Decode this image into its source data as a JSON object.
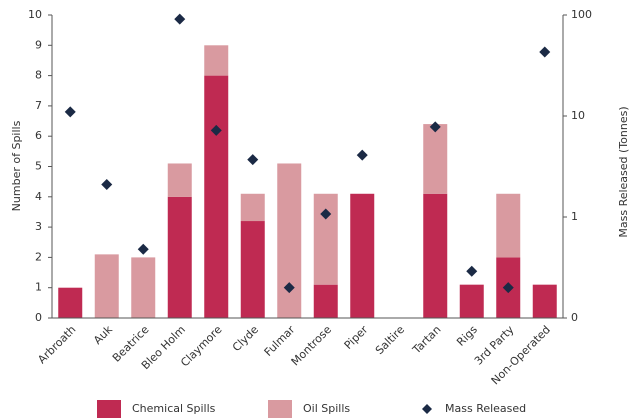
{
  "chart_data": {
    "type": "bar",
    "categories": [
      "Arbroath",
      "Auk",
      "Beatrice",
      "Bleo Holm",
      "Claymore",
      "Clyde",
      "Fulmar",
      "Montrose",
      "Piper",
      "Saltire",
      "Tartan",
      "Rigs",
      "3rd Party",
      "Non-Operated"
    ],
    "series": [
      {
        "name": "Chemical Spills",
        "color": "#bf2a52",
        "values": [
          1,
          0,
          0,
          4,
          8,
          3.2,
          0,
          1.1,
          4.1,
          0,
          4.1,
          1.1,
          2,
          1.1
        ]
      },
      {
        "name": "Oil Spills",
        "color": "#d99aa0",
        "values": [
          0,
          2.1,
          2,
          1.1,
          1,
          0.9,
          5.1,
          3,
          0,
          0,
          2.3,
          0,
          2.1,
          0
        ]
      },
      {
        "name": "Mass Released",
        "type": "scatter",
        "axis": "y2",
        "color": "#1b2a45",
        "values": [
          11,
          2.1,
          0.48,
          91,
          7.2,
          3.7,
          0.2,
          1.07,
          4.1,
          null,
          7.8,
          0.29,
          0.2,
          43
        ]
      }
    ],
    "y_label": "Number of Spills",
    "y2_label": "Mass Released (Tonnes)",
    "ylim": [
      0,
      10
    ],
    "yticks": [
      0,
      1,
      2,
      3,
      4,
      5,
      6,
      7,
      8,
      9,
      10
    ],
    "y2lim": [
      0.1,
      100
    ],
    "y2log": true,
    "y2ticks": [
      {
        "value": 0.1,
        "label": "0"
      },
      1,
      10,
      100
    ],
    "legend": "bottom"
  }
}
